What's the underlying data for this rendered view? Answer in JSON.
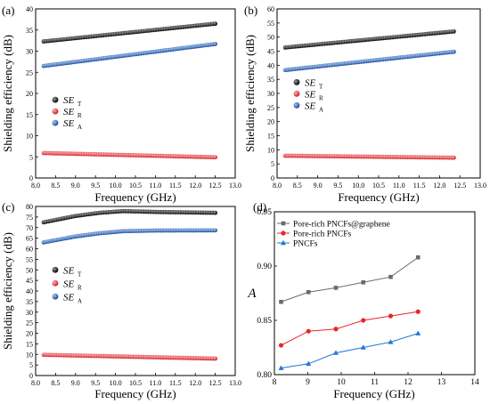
{
  "figure": {
    "panels": [
      "(a)",
      "(b)",
      "(c)",
      "(d)"
    ]
  },
  "chart_data": [
    {
      "type": "scatter",
      "panel": "(a)",
      "xlabel": "Frequency (GHz)",
      "ylabel": "Shielding efficiency (dB)",
      "xlim": [
        8.0,
        13.0
      ],
      "ylim": [
        0,
        40
      ],
      "xticks": [
        "8.0",
        "8.5",
        "9.0",
        "9.5",
        "10.0",
        "10.5",
        "11.0",
        "11.5",
        "12.0",
        "12.5",
        "13.0"
      ],
      "yticks": [
        "0",
        "5",
        "10",
        "15",
        "20",
        "25",
        "30",
        "35",
        "40"
      ],
      "legend_position": "middle-left",
      "series": [
        {
          "name": "SE",
          "sub": "T",
          "color": "#111111",
          "x_start": 8.2,
          "x_end": 12.5,
          "y_start": 32.3,
          "y_end": 36.5
        },
        {
          "name": "SE",
          "sub": "R",
          "color": "#e8272b",
          "x_start": 8.2,
          "x_end": 12.5,
          "y_start": 5.9,
          "y_end": 4.9
        },
        {
          "name": "SE",
          "sub": "A",
          "color": "#1f5db8",
          "x_start": 8.2,
          "x_end": 12.5,
          "y_start": 26.5,
          "y_end": 31.7
        }
      ]
    },
    {
      "type": "scatter",
      "panel": "(b)",
      "xlabel": "Frequency (GHz)",
      "ylabel": "Shielding efficiency (dB)",
      "xlim": [
        8.0,
        13.0
      ],
      "ylim": [
        0,
        60
      ],
      "xticks": [
        "8.0",
        "8.5",
        "9.0",
        "9.5",
        "10.0",
        "10.5",
        "11.0",
        "11.5",
        "12.0",
        "12.5",
        "13.0"
      ],
      "yticks": [
        "0",
        "5",
        "10",
        "15",
        "20",
        "25",
        "30",
        "35",
        "40",
        "45",
        "50",
        "55",
        "60"
      ],
      "legend_position": "middle-left",
      "series": [
        {
          "name": "SE",
          "sub": "T",
          "color": "#111111",
          "x_start": 8.2,
          "x_end": 12.35,
          "y_start": 46.3,
          "y_end": 52.0
        },
        {
          "name": "SE",
          "sub": "R",
          "color": "#e8272b",
          "x_start": 8.2,
          "x_end": 12.35,
          "y_start": 7.9,
          "y_end": 7.2
        },
        {
          "name": "SE",
          "sub": "A",
          "color": "#1f5db8",
          "x_start": 8.2,
          "x_end": 12.35,
          "y_start": 38.3,
          "y_end": 44.8
        }
      ]
    },
    {
      "type": "scatter",
      "panel": "(c)",
      "xlabel": "Frequency (GHz)",
      "ylabel": "Shielding efficiency (dB)",
      "xlim": [
        8.0,
        13.0
      ],
      "ylim": [
        0,
        80
      ],
      "xticks": [
        "8.0",
        "8.5",
        "9.0",
        "9.5",
        "10.0",
        "10.5",
        "11.0",
        "11.5",
        "12.0",
        "12.5",
        "13.0"
      ],
      "yticks": [
        "0",
        "5",
        "10",
        "15",
        "20",
        "25",
        "30",
        "35",
        "40",
        "45",
        "50",
        "55",
        "60",
        "65",
        "70",
        "75",
        "80"
      ],
      "legend_position": "middle-left",
      "series": [
        {
          "name": "SE",
          "sub": "T",
          "color": "#111111",
          "x_start": 8.2,
          "x_end": 12.5,
          "curve": [
            [
              8.2,
              72.5
            ],
            [
              9.0,
              75.5
            ],
            [
              9.6,
              77.0
            ],
            [
              10.2,
              77.8
            ],
            [
              11.0,
              77.4
            ],
            [
              12.5,
              77.0
            ]
          ]
        },
        {
          "name": "SE",
          "sub": "R",
          "color": "#e8272b",
          "x_start": 8.2,
          "x_end": 12.5,
          "curve": [
            [
              8.2,
              9.8
            ],
            [
              12.5,
              8.0
            ]
          ]
        },
        {
          "name": "SE",
          "sub": "A",
          "color": "#1f5db8",
          "x_start": 8.2,
          "x_end": 12.5,
          "curve": [
            [
              8.2,
              63.0
            ],
            [
              9.0,
              65.8
            ],
            [
              9.6,
              67.3
            ],
            [
              10.2,
              68.3
            ],
            [
              11.0,
              68.6
            ],
            [
              12.5,
              68.7
            ]
          ]
        }
      ]
    },
    {
      "type": "line",
      "panel": "(d)",
      "xlabel": "Frequency (GHz)",
      "ylabel": "A",
      "xlim": [
        8,
        14
      ],
      "ylim": [
        0.8,
        0.95
      ],
      "xticks": [
        "8",
        "9",
        "10",
        "11",
        "12",
        "13",
        "14"
      ],
      "yticks": [
        "0.80",
        "0.85",
        "0.90",
        "0.95"
      ],
      "legend_position": "top-left",
      "x": [
        8.2,
        9.02,
        9.84,
        10.66,
        11.48,
        12.3
      ],
      "series": [
        {
          "name": "Pore-rich PNCFs@graphene",
          "color": "#6b6b6b",
          "marker": "square",
          "values": [
            0.867,
            0.876,
            0.88,
            0.885,
            0.89,
            0.908
          ]
        },
        {
          "name": "Pore-rich PNCFs",
          "color": "#e8272b",
          "marker": "circle",
          "values": [
            0.827,
            0.84,
            0.842,
            0.85,
            0.854,
            0.858
          ]
        },
        {
          "name": "PNCFs",
          "color": "#1e78d8",
          "marker": "triangle",
          "values": [
            0.806,
            0.81,
            0.82,
            0.825,
            0.83,
            0.838
          ]
        }
      ]
    }
  ]
}
